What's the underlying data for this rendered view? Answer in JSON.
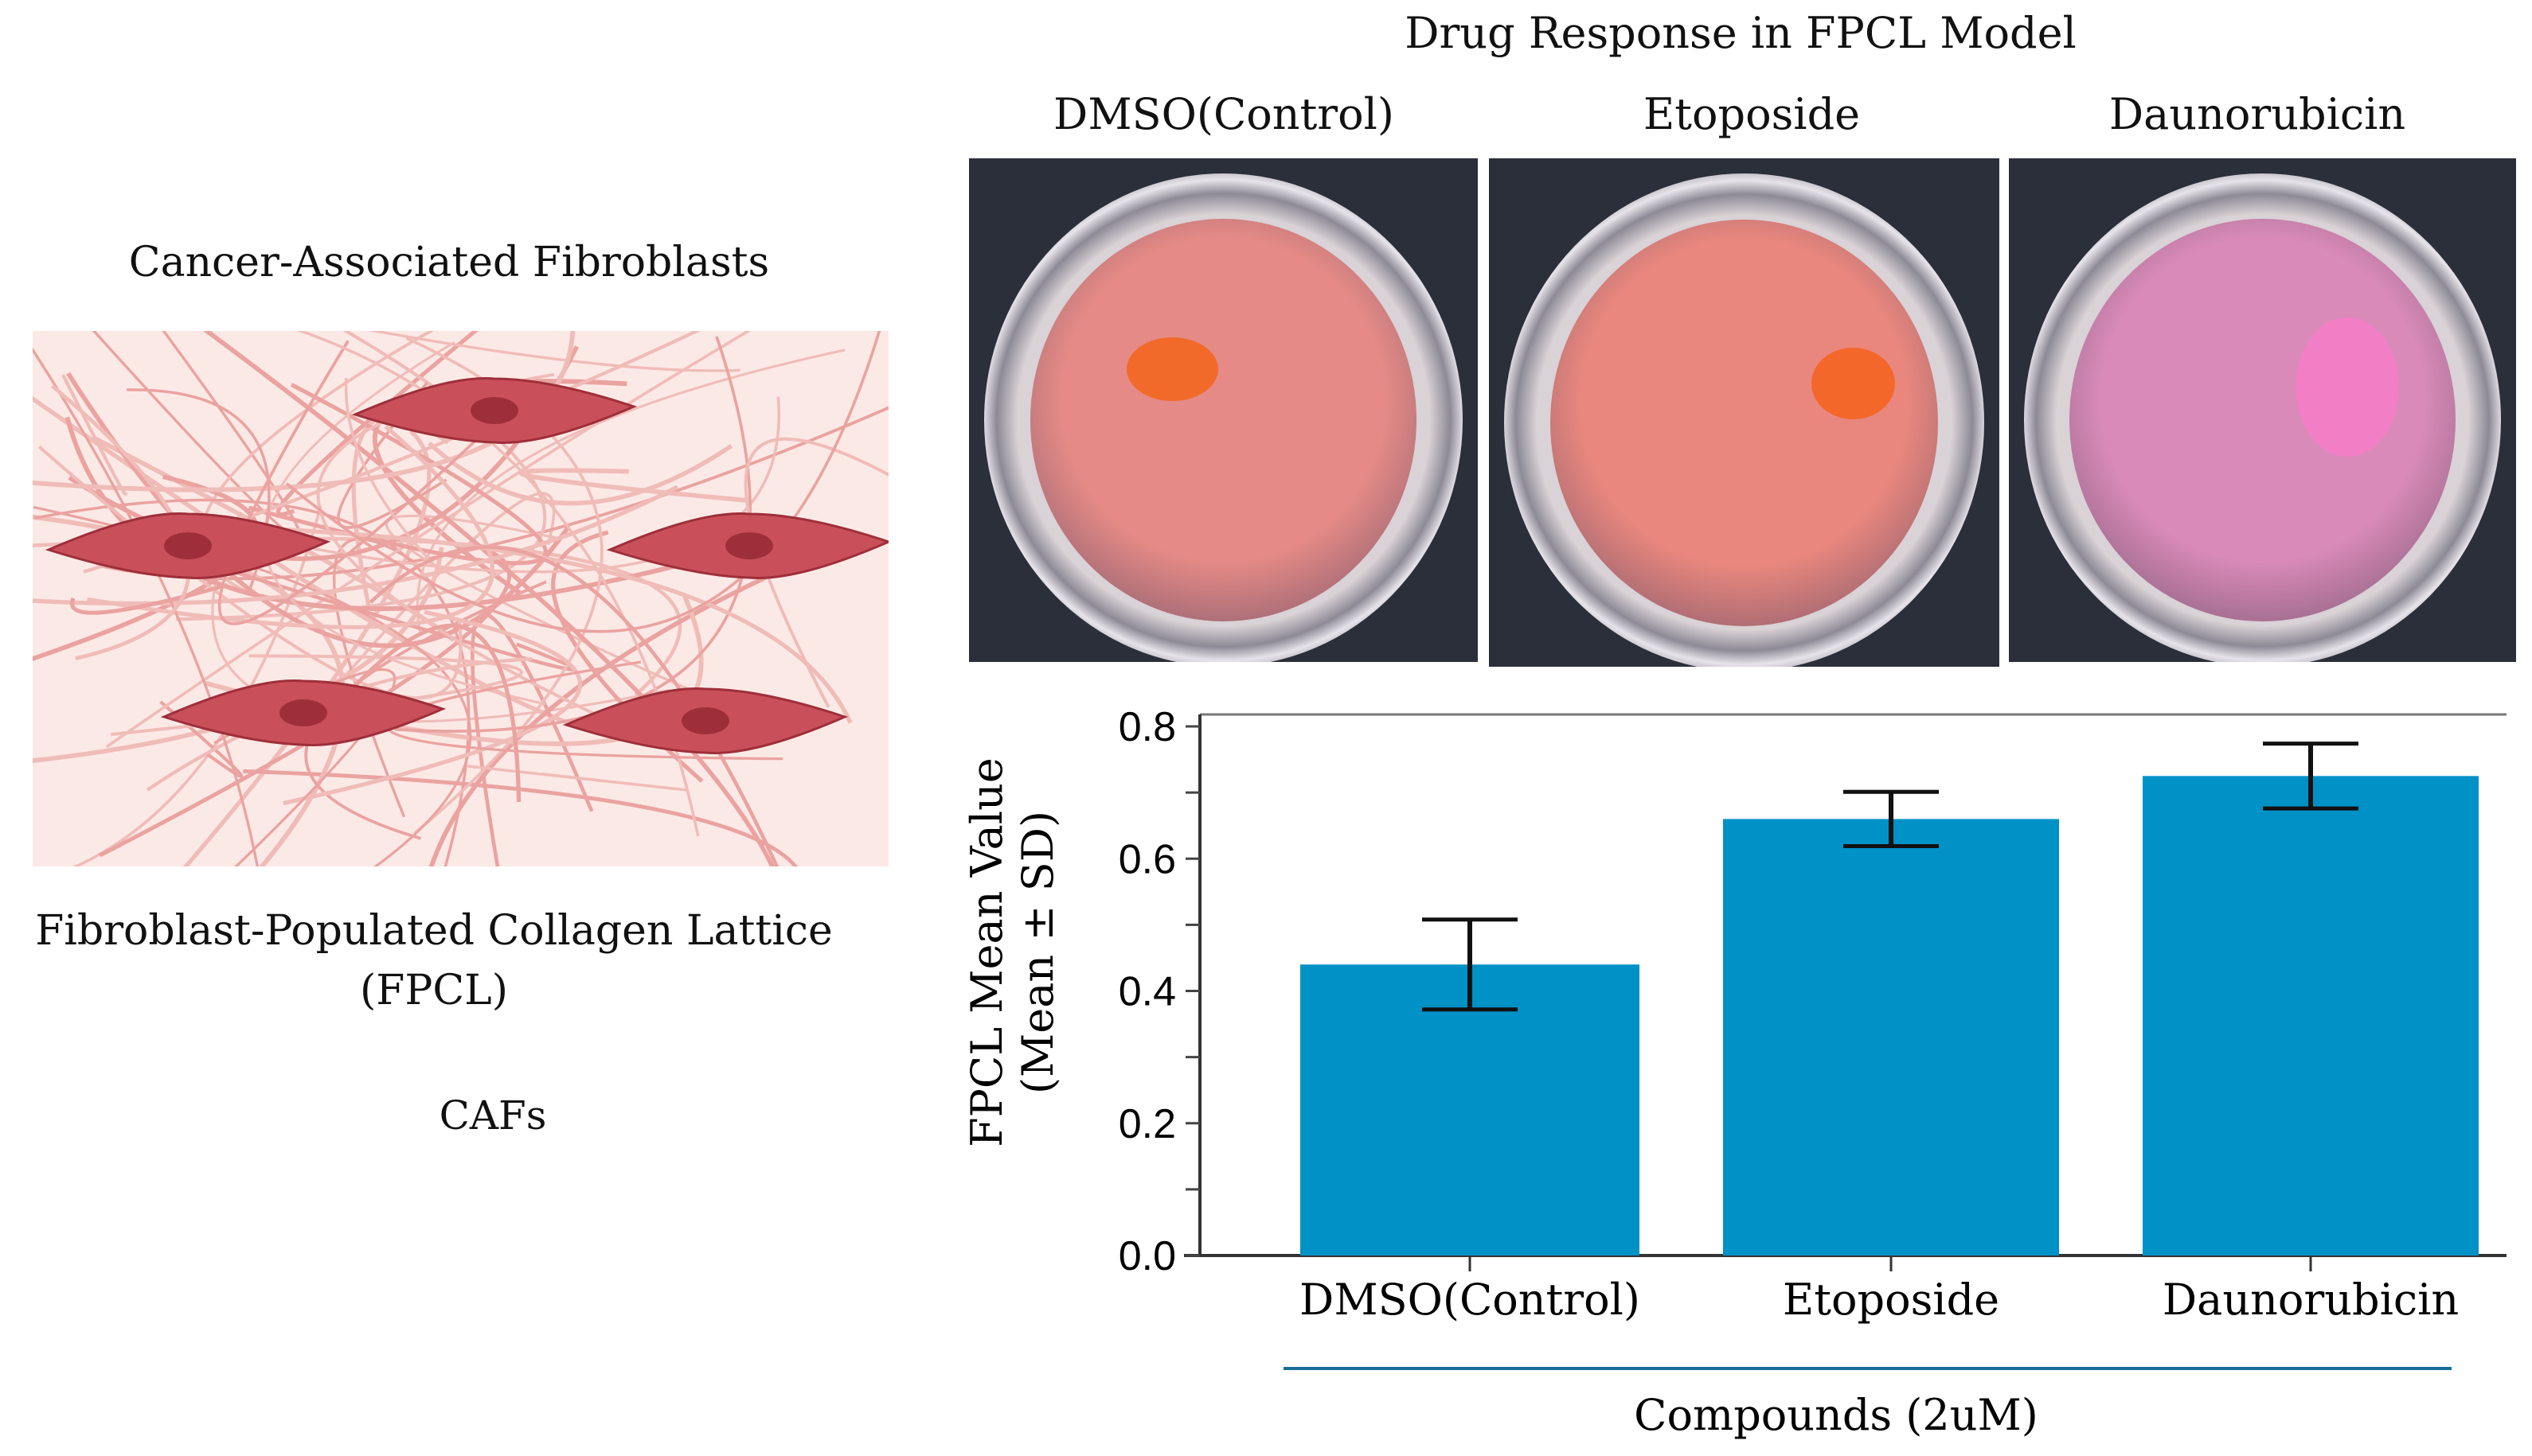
{
  "left_panel": {
    "title": "Cancer-Associated Fibroblasts",
    "cell_label": "CAFs",
    "caption_line1": "Fibroblast-Populated Collagen Lattice",
    "caption_line2": "(FPCL)"
  },
  "right_panel": {
    "title": "Drug Response in FPCL Model",
    "photos": [
      {
        "label": "DMSO(Control)",
        "media_color": "#e58a86",
        "lattice_color": "#f26a2a"
      },
      {
        "label": "Etoposide",
        "media_color": "#e9877e",
        "lattice_color": "#f4672a"
      },
      {
        "label": "Daunorubicin",
        "media_color": "#d98ab8",
        "lattice_color": "#f27fc6"
      }
    ]
  },
  "chart_data": {
    "type": "bar",
    "categories": [
      "DMSO(Control)",
      "Etoposide",
      "Daunorubicin"
    ],
    "values": [
      0.44,
      0.66,
      0.725
    ],
    "error_sd": [
      0.068,
      0.041,
      0.049
    ],
    "xlabel": "Compounds (2uM)",
    "ylabel_line1": "FPCL Mean Value",
    "ylabel_line2": "(Mean ± SD)",
    "ylim": [
      0,
      0.8
    ],
    "yticks": [
      "0.0",
      "0.2",
      "0.4",
      "0.6",
      "0.8"
    ],
    "bar_color": "#0091c6",
    "grid": false
  }
}
